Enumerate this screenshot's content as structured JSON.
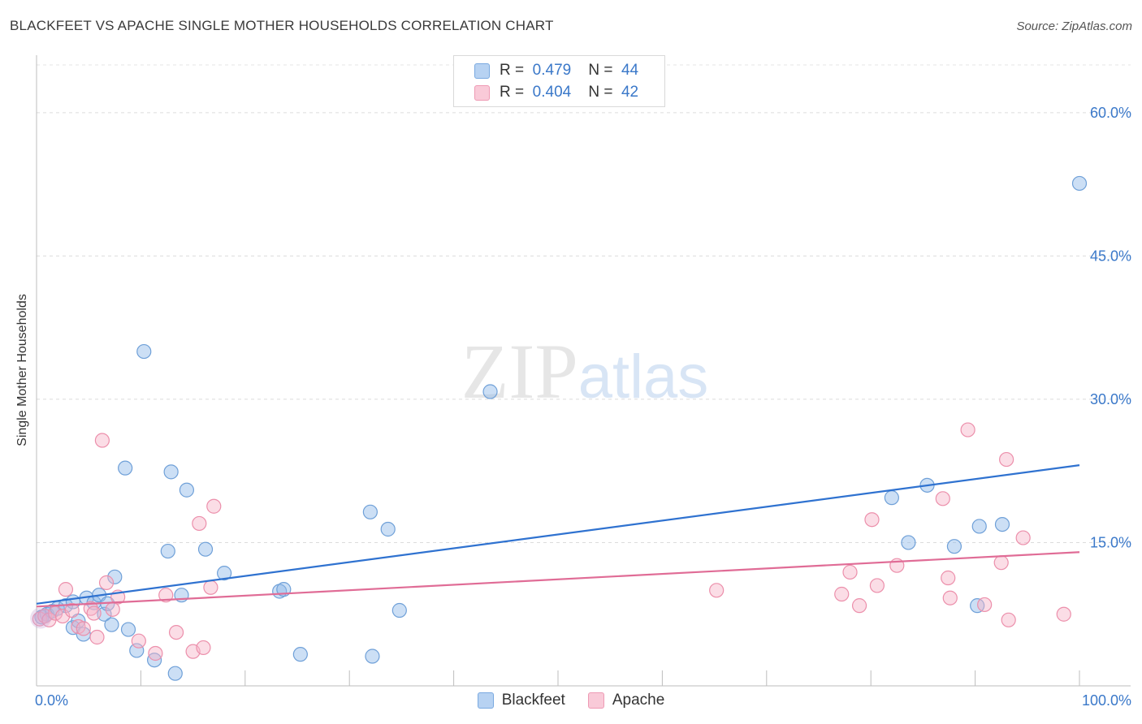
{
  "chart_data": {
    "type": "scatter",
    "title": "BLACKFEET VS APACHE SINGLE MOTHER HOUSEHOLDS CORRELATION CHART",
    "source": "Source: ZipAtlas.com",
    "ylabel": "Single Mother Households",
    "xlabel": "",
    "xlim": [
      0,
      100
    ],
    "ylim": [
      0,
      65
    ],
    "x_ticks": [
      "0.0%",
      "100.0%"
    ],
    "y_ticks": [
      {
        "value": 15,
        "label": "15.0%"
      },
      {
        "value": 30,
        "label": "30.0%"
      },
      {
        "value": 45,
        "label": "45.0%"
      },
      {
        "value": 60,
        "label": "60.0%"
      }
    ],
    "grid": true,
    "watermark": "ZIPatlas",
    "series": [
      {
        "name": "Blackfeet",
        "color": "#8fb8e8",
        "stroke": "#6fa0d8",
        "line_color": "#2f72d0",
        "r": "0.479",
        "n": "44",
        "trend": [
          [
            0,
            8.6
          ],
          [
            100,
            23.1
          ]
        ],
        "points": [
          [
            0.5,
            7.2
          ],
          [
            1.0,
            7.5
          ],
          [
            1.5,
            7.8
          ],
          [
            2.0,
            8.1
          ],
          [
            2.8,
            8.4
          ],
          [
            3.5,
            6.1
          ],
          [
            3.5,
            8.8
          ],
          [
            4.0,
            6.8
          ],
          [
            4.5,
            5.4
          ],
          [
            4.8,
            9.2
          ],
          [
            5.5,
            8.7
          ],
          [
            6.0,
            9.5
          ],
          [
            6.5,
            7.5
          ],
          [
            6.8,
            8.6
          ],
          [
            7.2,
            6.4
          ],
          [
            7.5,
            11.4
          ],
          [
            8.5,
            22.8
          ],
          [
            8.8,
            5.9
          ],
          [
            9.6,
            3.7
          ],
          [
            10.3,
            35.0
          ],
          [
            11.3,
            2.7
          ],
          [
            12.6,
            14.1
          ],
          [
            12.9,
            22.4
          ],
          [
            13.3,
            1.3
          ],
          [
            13.9,
            9.5
          ],
          [
            14.4,
            20.5
          ],
          [
            16.2,
            14.3
          ],
          [
            18.0,
            11.8
          ],
          [
            23.3,
            9.9
          ],
          [
            23.7,
            10.1
          ],
          [
            25.3,
            3.3
          ],
          [
            32.0,
            18.2
          ],
          [
            32.2,
            3.1
          ],
          [
            33.7,
            16.4
          ],
          [
            34.8,
            7.9
          ],
          [
            43.5,
            30.8
          ],
          [
            82.0,
            19.7
          ],
          [
            83.6,
            15.0
          ],
          [
            85.4,
            21.0
          ],
          [
            88.0,
            14.6
          ],
          [
            90.2,
            8.4
          ],
          [
            90.4,
            16.7
          ],
          [
            92.6,
            16.9
          ],
          [
            100.0,
            52.6
          ]
        ]
      },
      {
        "name": "Apache",
        "color": "#f6b3c8",
        "stroke": "#ec8fab",
        "line_color": "#e06c96",
        "r": "0.404",
        "n": "42",
        "trend": [
          [
            0,
            8.3
          ],
          [
            100,
            14.0
          ]
        ],
        "points": [
          [
            0.3,
            7.0
          ],
          [
            0.8,
            7.3
          ],
          [
            1.2,
            6.9
          ],
          [
            1.8,
            7.6
          ],
          [
            2.5,
            7.3
          ],
          [
            2.8,
            10.1
          ],
          [
            3.4,
            7.9
          ],
          [
            4.0,
            6.2
          ],
          [
            4.5,
            6.0
          ],
          [
            5.2,
            8.1
          ],
          [
            5.5,
            7.6
          ],
          [
            5.8,
            5.1
          ],
          [
            6.3,
            25.7
          ],
          [
            6.7,
            10.8
          ],
          [
            7.3,
            8.0
          ],
          [
            7.8,
            9.3
          ],
          [
            9.8,
            4.7
          ],
          [
            11.4,
            3.4
          ],
          [
            12.4,
            9.5
          ],
          [
            13.4,
            5.6
          ],
          [
            15.0,
            3.6
          ],
          [
            15.6,
            17.0
          ],
          [
            16.0,
            4.0
          ],
          [
            16.7,
            10.3
          ],
          [
            17.0,
            18.8
          ],
          [
            65.2,
            10.0
          ],
          [
            77.2,
            9.6
          ],
          [
            78.0,
            11.9
          ],
          [
            78.9,
            8.4
          ],
          [
            80.1,
            17.4
          ],
          [
            80.6,
            10.5
          ],
          [
            82.5,
            12.6
          ],
          [
            86.9,
            19.6
          ],
          [
            87.4,
            11.3
          ],
          [
            87.6,
            9.2
          ],
          [
            89.3,
            26.8
          ],
          [
            90.9,
            8.5
          ],
          [
            92.5,
            12.9
          ],
          [
            93.0,
            23.7
          ],
          [
            93.2,
            6.9
          ],
          [
            94.6,
            15.5
          ],
          [
            98.5,
            7.5
          ]
        ]
      }
    ]
  }
}
